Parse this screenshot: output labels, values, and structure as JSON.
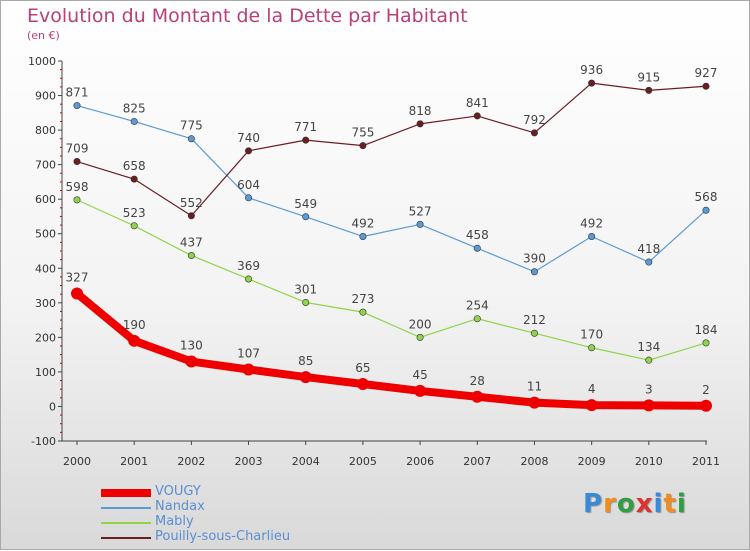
{
  "header": {
    "title": "Evolution du Montant de la Dette par Habitant",
    "subtitle": "(en €)"
  },
  "logo": {
    "text": "Proxiti",
    "letter_colors": [
      "#3a8ad8",
      "#f28c1e",
      "#2e9e3e",
      "#e03030",
      "#3a8ad8",
      "#f28c1e",
      "#2e9e3e"
    ]
  },
  "chart_data": {
    "type": "line",
    "title": "Evolution du Montant de la Dette par Habitant",
    "subtitle": "(en €)",
    "xlabel": "",
    "ylabel": "",
    "x": [
      "2000",
      "2001",
      "2002",
      "2003",
      "2004",
      "2005",
      "2006",
      "2007",
      "2008",
      "2009",
      "2010",
      "2011"
    ],
    "ylim": [
      -100,
      1000
    ],
    "yticks": [
      "-100",
      "0",
      "100",
      "200",
      "300",
      "400",
      "500",
      "600",
      "700",
      "800",
      "900",
      "1000"
    ],
    "grid": false,
    "legend_position": "bottom-left",
    "series": [
      {
        "name": "VOUGY",
        "color": "#ee0000",
        "values": [
          327,
          190,
          130,
          107,
          85,
          65,
          45,
          28,
          11,
          4,
          3,
          2
        ]
      },
      {
        "name": "Nandax",
        "color": "#5b9bd5",
        "values": [
          871,
          825,
          775,
          604,
          549,
          492,
          527,
          458,
          390,
          492,
          418,
          568
        ]
      },
      {
        "name": "Mably",
        "color": "#8fd44a",
        "values": [
          598,
          523,
          437,
          369,
          301,
          273,
          200,
          254,
          212,
          170,
          134,
          184
        ]
      },
      {
        "name": "Pouilly-sous-Charlieu",
        "color": "#6b1e22",
        "values": [
          709,
          658,
          552,
          740,
          771,
          755,
          818,
          841,
          792,
          936,
          915,
          927
        ]
      }
    ]
  }
}
